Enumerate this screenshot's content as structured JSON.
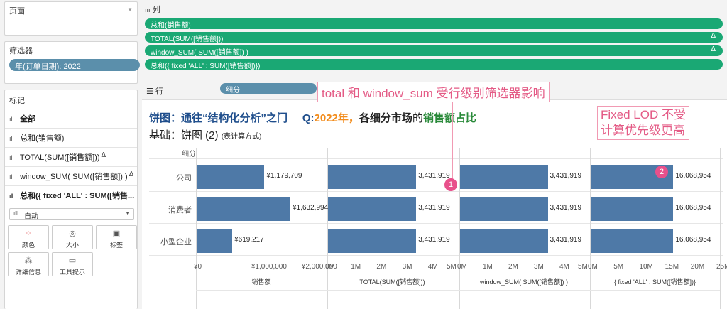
{
  "left": {
    "pages_title": "页面",
    "filters_title": "筛选器",
    "filter_pill": "年(订单日期): 2022",
    "marks_title": "标记",
    "marks_items": [
      "全部",
      "总和(销售额)",
      "TOTAL(SUM([销售额]))",
      "window_SUM( SUM([销售额]) )",
      "总和({ fixed 'ALL' : SUM([销售..."
    ],
    "mark_type": "自动",
    "buttons": {
      "color": "颜色",
      "size": "大小",
      "label": "标签",
      "detail": "详细信息",
      "tooltip": "工具提示"
    }
  },
  "shelves": {
    "columns_label": "列",
    "columns": [
      "总和(销售额)",
      "TOTAL(SUM([销售额]))",
      "window_SUM( SUM([销售额]) )",
      "总和({ fixed 'ALL' : SUM([销售额])})"
    ],
    "rows_label": "行",
    "rows_pill": "细分"
  },
  "titles": {
    "line1_a": "饼图：通往“结构化分析”之门",
    "line1_b": "Q:",
    "line1_c": "2022年，",
    "line1_d": "各细分市场",
    "line1_e": "的",
    "line1_f": "销售额占比",
    "line2": "基础：饼图 (2)",
    "line2_small": "(表计算方式)"
  },
  "segment_header": "细分",
  "annotations": {
    "note1": "total 和 window_sum 受行级别筛选器影响",
    "note2_l1": "Fixed LOD 不受",
    "note2_l2": "计算优先级更高",
    "badge1": "1",
    "badge2": "2"
  },
  "colors": {
    "bar": "#4e79a7",
    "green_pill": "#1aa874",
    "blue_pill": "#5b8fab",
    "annotation": "#e8508b"
  },
  "chart_data": {
    "type": "bar",
    "categories": [
      "公司",
      "消费者",
      "小型企业"
    ],
    "panels": [
      {
        "axis_title": "销售额",
        "values": [
          1179709,
          1632994,
          619217
        ],
        "labels": [
          "¥1,179,709",
          "¥1,632,994",
          "¥619,217"
        ],
        "xlim": [
          0,
          2250000
        ],
        "ticks": [
          "¥0",
          "¥1,000,000",
          "¥2,000,000"
        ],
        "tick_values": [
          0,
          1000000,
          2000000
        ]
      },
      {
        "axis_title": "TOTAL(SUM([销售额]))",
        "values": [
          3431919,
          3431919,
          3431919
        ],
        "labels": [
          "3,431,919",
          "3,431,919",
          "3,431,919"
        ],
        "xlim": [
          0,
          5000000
        ],
        "ticks": [
          "0M",
          "1M",
          "2M",
          "3M",
          "4M",
          "5M"
        ],
        "tick_values": [
          0,
          1000000,
          2000000,
          3000000,
          4000000,
          5000000
        ]
      },
      {
        "axis_title": "window_SUM( SUM([销售额]) )",
        "values": [
          3431919,
          3431919,
          3431919
        ],
        "labels": [
          "3,431,919",
          "3,431,919",
          "3,431,919"
        ],
        "xlim": [
          0,
          5000000
        ],
        "ticks": [
          "0M",
          "1M",
          "2M",
          "3M",
          "4M",
          "5M"
        ],
        "tick_values": [
          0,
          1000000,
          2000000,
          3000000,
          4000000,
          5000000
        ]
      },
      {
        "axis_title": "{ fixed 'ALL' : SUM([销售额])}",
        "values": [
          16068954,
          16068954,
          16068954
        ],
        "labels": [
          "16,068,954",
          "16,068,954",
          "16,068,954"
        ],
        "xlim": [
          0,
          25000000
        ],
        "ticks": [
          "0M",
          "5M",
          "10M",
          "15M",
          "20M",
          "25M"
        ],
        "tick_values": [
          0,
          5000000,
          10000000,
          15000000,
          20000000,
          25000000
        ]
      }
    ]
  }
}
